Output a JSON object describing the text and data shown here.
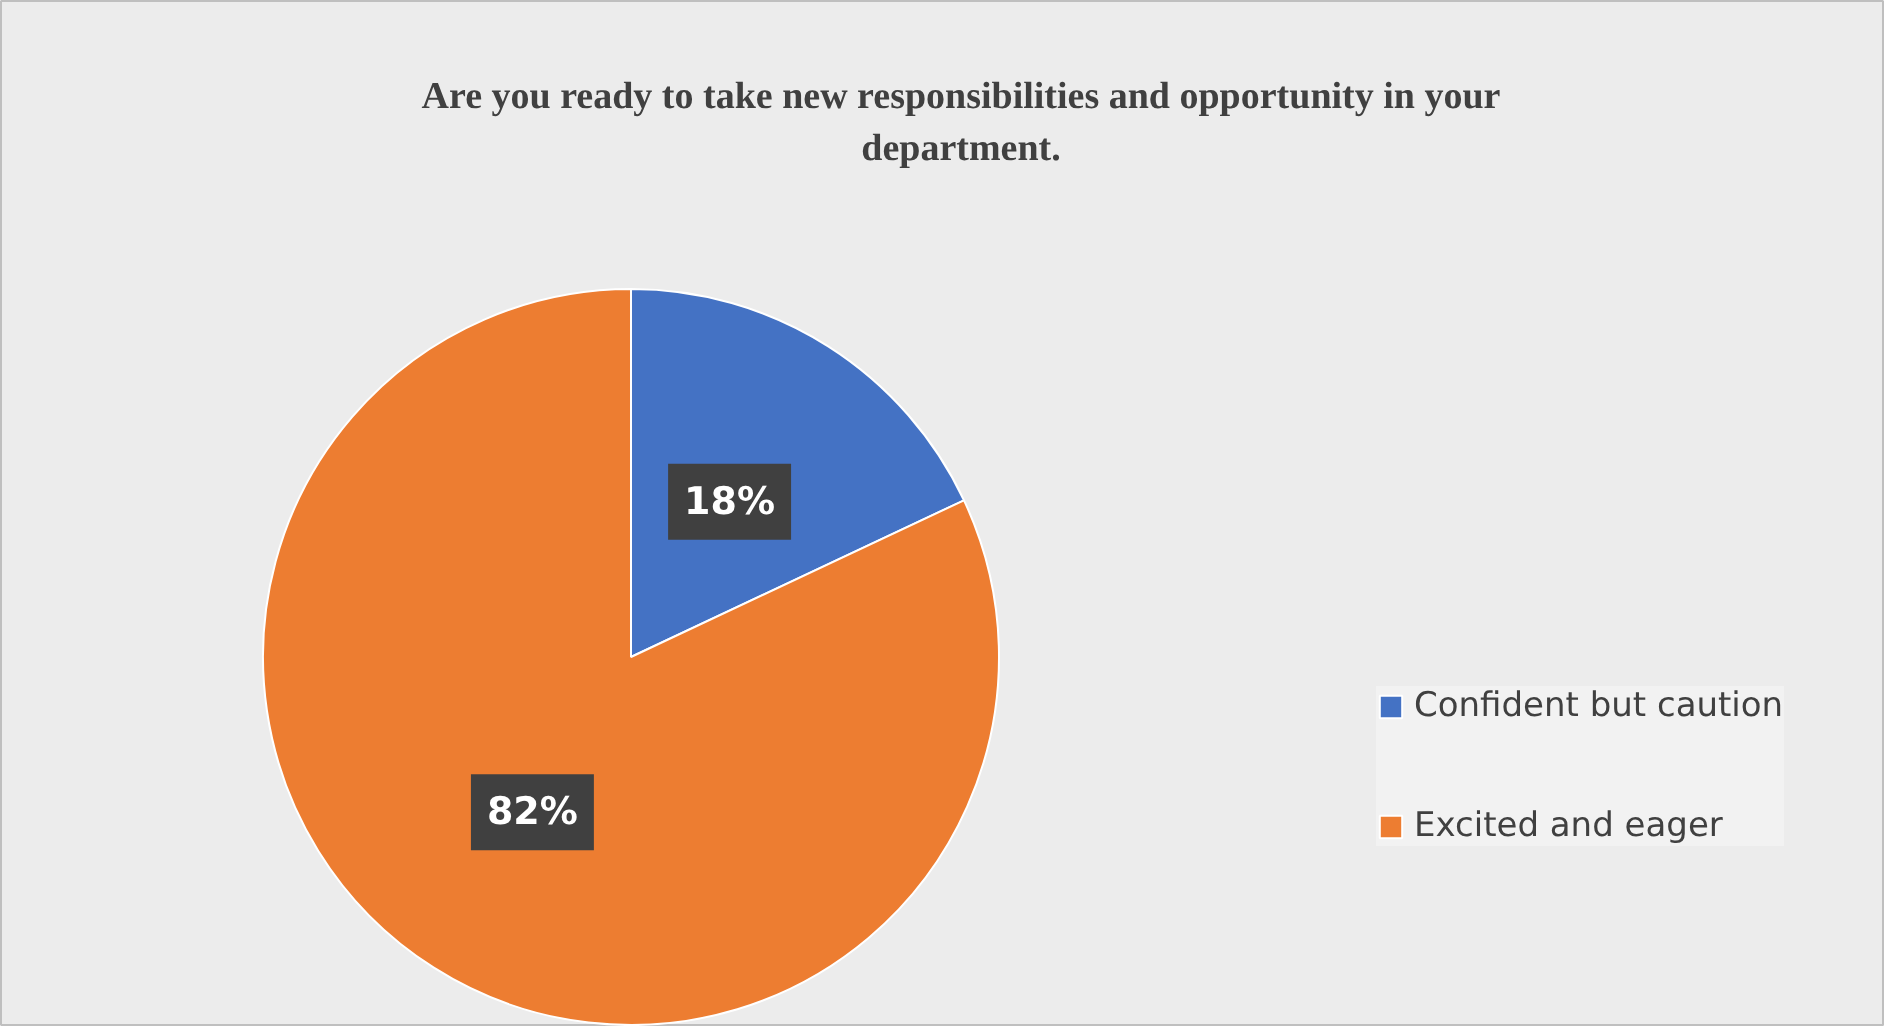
{
  "chart_data": {
    "type": "pie",
    "title": "Are you ready to take new responsibilities and opportunity in your department.",
    "categories": [
      "Confident but caution",
      "Excited and eager"
    ],
    "values": [
      18,
      82
    ],
    "colors": [
      "#4472c4",
      "#ed7d31"
    ],
    "value_labels": [
      "18%",
      "82%"
    ],
    "legend": "right"
  }
}
